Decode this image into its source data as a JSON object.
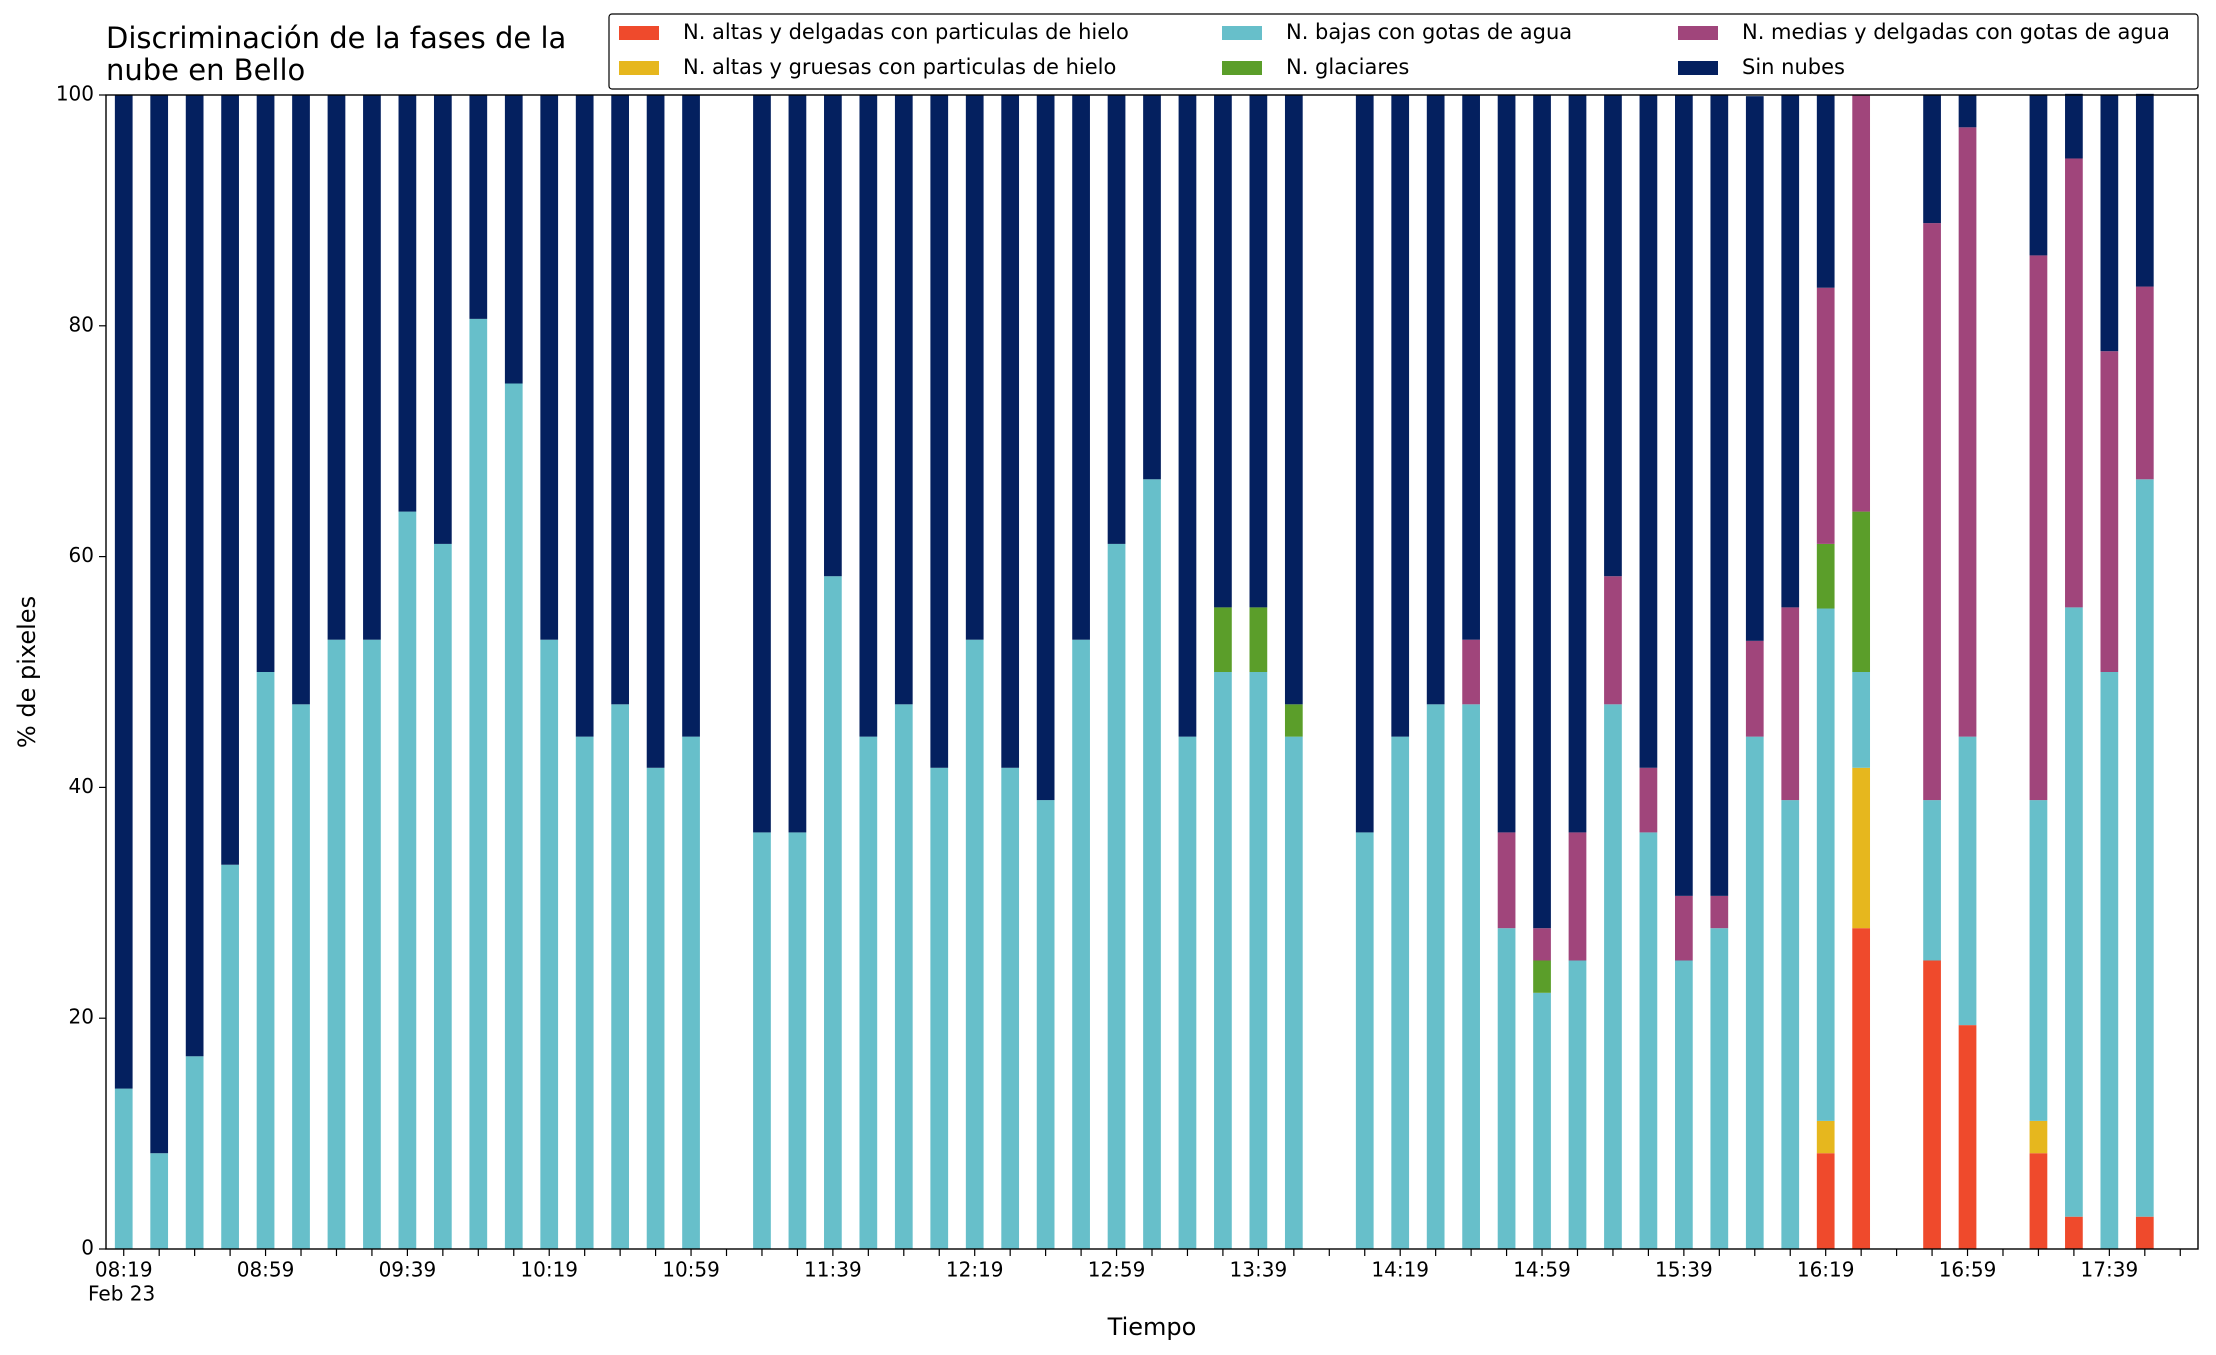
{
  "chart_data": {
    "type": "stacked_bar",
    "title": "Discriminación de la fases de la\nnube en Bello",
    "xlabel": "Tiempo",
    "ylabel": "% de pixeles",
    "date_label": "Feb 23",
    "categories": [
      "08:19",
      null,
      null,
      null,
      "08:59",
      null,
      null,
      null,
      "09:39",
      null,
      null,
      null,
      "10:19",
      null,
      null,
      null,
      "10:59",
      null,
      null,
      null,
      "11:39",
      null,
      null,
      null,
      "12:19",
      null,
      null,
      null,
      "12:59",
      null,
      null,
      null,
      "13:39",
      null,
      null,
      null,
      "14:19",
      null,
      null,
      null,
      "14:59",
      null,
      null,
      null,
      "15:39",
      null,
      null,
      null,
      "16:19",
      null,
      null,
      null,
      "16:59",
      null,
      null,
      null,
      "17:39",
      null
    ],
    "ylim": [
      0,
      100
    ],
    "yticks": [
      0,
      20,
      40,
      60,
      80,
      100
    ],
    "legend": "upper right",
    "series": [
      {
        "name": "N. altas y delgadas con particulas de hielo",
        "color": "#ef4a2c",
        "values": [
          0,
          0,
          0,
          0,
          0,
          0,
          0,
          0,
          0,
          0,
          0,
          0,
          0,
          0,
          0,
          0,
          0,
          null,
          0,
          0,
          0,
          0,
          0,
          0,
          0,
          0,
          0,
          0,
          0,
          0,
          0,
          0,
          0,
          0,
          null,
          0,
          0,
          0,
          0,
          0,
          0,
          0,
          0,
          0,
          0,
          0,
          0,
          0,
          8.3,
          27.8,
          null,
          25,
          19.4,
          null,
          8.3,
          2.8,
          0,
          2.8
        ]
      },
      {
        "name": "N. altas y gruesas con particulas de hielo",
        "color": "#e6b71e",
        "values": [
          0,
          0,
          0,
          0,
          0,
          0,
          0,
          0,
          0,
          0,
          0,
          0,
          0,
          0,
          0,
          0,
          0,
          null,
          0,
          0,
          0,
          0,
          0,
          0,
          0,
          0,
          0,
          0,
          0,
          0,
          0,
          0,
          0,
          0,
          null,
          0,
          0,
          0,
          0,
          0,
          0,
          0,
          0,
          0,
          0,
          0,
          0,
          0,
          2.8,
          13.9,
          null,
          0,
          0,
          null,
          2.8,
          0,
          0,
          0
        ]
      },
      {
        "name": "N. bajas con gotas de agua",
        "color": "#67bfca",
        "values": [
          13.9,
          8.3,
          16.7,
          33.3,
          50,
          47.2,
          52.8,
          52.8,
          63.9,
          61.1,
          80.6,
          75,
          52.8,
          44.4,
          47.2,
          41.7,
          44.4,
          null,
          36.1,
          36.1,
          58.3,
          44.4,
          47.2,
          41.7,
          52.8,
          41.7,
          38.9,
          52.8,
          61.1,
          66.7,
          44.4,
          50,
          50,
          44.4,
          null,
          36.1,
          44.4,
          47.2,
          47.2,
          27.8,
          22.2,
          25,
          47.2,
          36.1,
          25,
          27.8,
          44.4,
          38.9,
          44.4,
          8.3,
          null,
          13.9,
          25,
          null,
          27.8,
          52.8,
          50,
          63.9
        ]
      },
      {
        "name": "N. glaciares",
        "color": "#5b9e2a",
        "values": [
          0,
          0,
          0,
          0,
          0,
          0,
          0,
          0,
          0,
          0,
          0,
          0,
          0,
          0,
          0,
          0,
          0,
          null,
          0,
          0,
          0,
          0,
          0,
          0,
          0,
          0,
          0,
          0,
          0,
          0,
          0,
          5.6,
          5.6,
          2.8,
          null,
          0,
          0,
          0,
          0,
          0,
          2.8,
          0,
          0,
          0,
          0,
          0,
          0,
          0,
          5.6,
          13.9,
          null,
          0,
          0,
          null,
          0,
          0,
          0,
          0
        ]
      },
      {
        "name": "N. medias y delgadas con gotas de agua",
        "color": "#a0457b",
        "values": [
          0,
          0,
          0,
          0,
          0,
          0,
          0,
          0,
          0,
          0,
          0,
          0,
          0,
          0,
          0,
          0,
          0,
          null,
          0,
          0,
          0,
          0,
          0,
          0,
          0,
          0,
          0,
          0,
          0,
          0,
          0,
          0,
          0,
          0,
          null,
          0,
          0,
          0,
          5.6,
          8.3,
          2.8,
          11.1,
          11.1,
          5.6,
          5.6,
          2.8,
          8.3,
          16.7,
          22.2,
          36.1,
          null,
          50,
          52.8,
          null,
          47.2,
          38.9,
          27.8,
          16.7
        ]
      },
      {
        "name": "Sin nubes",
        "color": "#04205f",
        "values": [
          86.1,
          91.7,
          83.3,
          66.7,
          50,
          52.8,
          47.2,
          47.2,
          36.1,
          38.9,
          19.4,
          25,
          47.2,
          55.6,
          52.8,
          58.3,
          55.6,
          null,
          63.9,
          63.9,
          41.7,
          55.6,
          52.8,
          58.3,
          47.2,
          58.3,
          61.1,
          47.2,
          38.9,
          33.3,
          55.6,
          44.4,
          44.4,
          52.8,
          null,
          63.9,
          55.6,
          52.8,
          47.2,
          63.9,
          72.2,
          63.9,
          41.7,
          58.3,
          69.4,
          69.4,
          47.2,
          44.4,
          16.7,
          0,
          null,
          11.1,
          2.8,
          null,
          13.9,
          5.6,
          22.2,
          16.7
        ]
      }
    ]
  }
}
